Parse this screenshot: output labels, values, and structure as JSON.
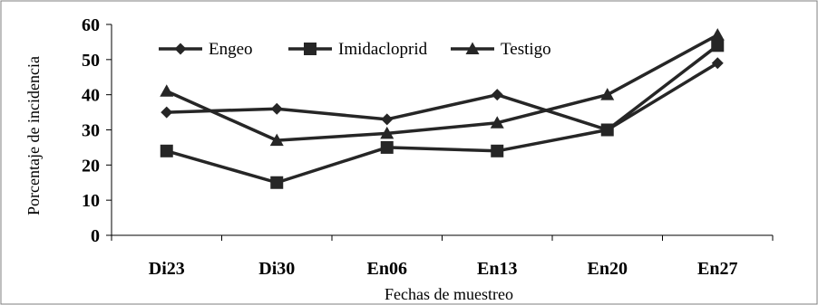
{
  "chart_data": {
    "type": "line",
    "title": "",
    "xlabel": "Fechas de muestreo",
    "ylabel": "Porcentaje de incidencia",
    "categories": [
      "Di23",
      "Di30",
      "En06",
      "En13",
      "En20",
      "En27"
    ],
    "ylim": [
      0,
      60
    ],
    "yticks": [
      0,
      10,
      20,
      30,
      40,
      50,
      60
    ],
    "grid": false,
    "legend_position": "top",
    "series": [
      {
        "name": "Engeo",
        "marker": "diamond",
        "color": "#262626",
        "values": [
          35,
          36,
          33,
          40,
          30,
          49
        ]
      },
      {
        "name": "Imidacloprid",
        "marker": "square",
        "color": "#262626",
        "values": [
          24,
          15,
          25,
          24,
          30,
          54
        ]
      },
      {
        "name": "Testigo",
        "marker": "triangle",
        "color": "#262626",
        "values": [
          41,
          27,
          29,
          32,
          40,
          57
        ]
      }
    ]
  }
}
